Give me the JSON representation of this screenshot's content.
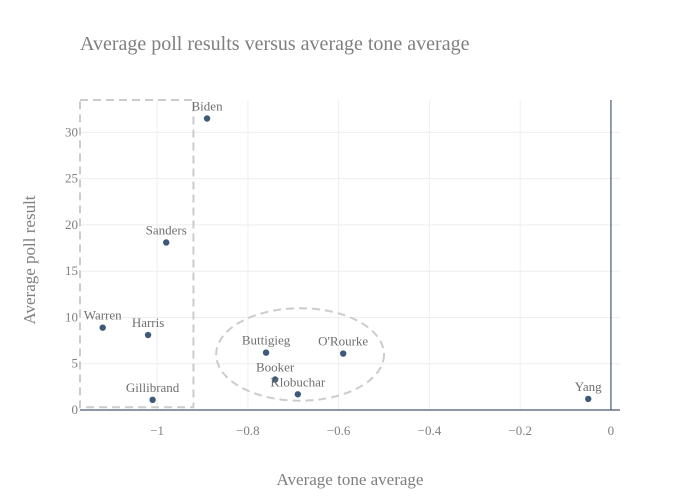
{
  "chart_data": {
    "type": "scatter",
    "title": "Average poll results versus average tone average",
    "xlabel": "Average tone average",
    "ylabel": "Average poll result",
    "xlim": [
      -1.17,
      0.02
    ],
    "ylim": [
      0,
      33.5
    ],
    "xticks": [
      -1,
      -0.8,
      -0.6,
      -0.4,
      -0.2,
      0
    ],
    "xtick_labels": [
      "−1",
      "−0.8",
      "−0.6",
      "−0.4",
      "−0.2",
      "0"
    ],
    "yticks": [
      0,
      5,
      10,
      15,
      20,
      25,
      30
    ],
    "ytick_labels": [
      "0",
      "5",
      "10",
      "15",
      "20",
      "25",
      "30"
    ],
    "grid": true,
    "marker_color": "#3d5a7a",
    "points": [
      {
        "label": "Biden",
        "x": -0.89,
        "y": 31.5
      },
      {
        "label": "Sanders",
        "x": -0.98,
        "y": 18.1
      },
      {
        "label": "Warren",
        "x": -1.12,
        "y": 8.9
      },
      {
        "label": "Harris",
        "x": -1.02,
        "y": 8.1
      },
      {
        "label": "Gillibrand",
        "x": -1.01,
        "y": 1.1
      },
      {
        "label": "Buttigieg",
        "x": -0.76,
        "y": 6.2
      },
      {
        "label": "O'Rourke",
        "x": -0.59,
        "y": 6.1
      },
      {
        "label": "Booker",
        "x": -0.74,
        "y": 3.3
      },
      {
        "label": "Klobuchar",
        "x": -0.69,
        "y": 1.7
      },
      {
        "label": "Yang",
        "x": -0.05,
        "y": 1.2
      }
    ],
    "annotations": [
      {
        "shape": "rect",
        "style": "dashed",
        "color": "#cccccc",
        "x0": -1.17,
        "x1": -0.92,
        "y0": 0.3,
        "y1": 33.5
      },
      {
        "shape": "ellipse",
        "style": "dashed",
        "color": "#cccccc",
        "x0": -0.87,
        "x1": -0.5,
        "y0": 1.0,
        "y1": 11.0
      }
    ]
  }
}
